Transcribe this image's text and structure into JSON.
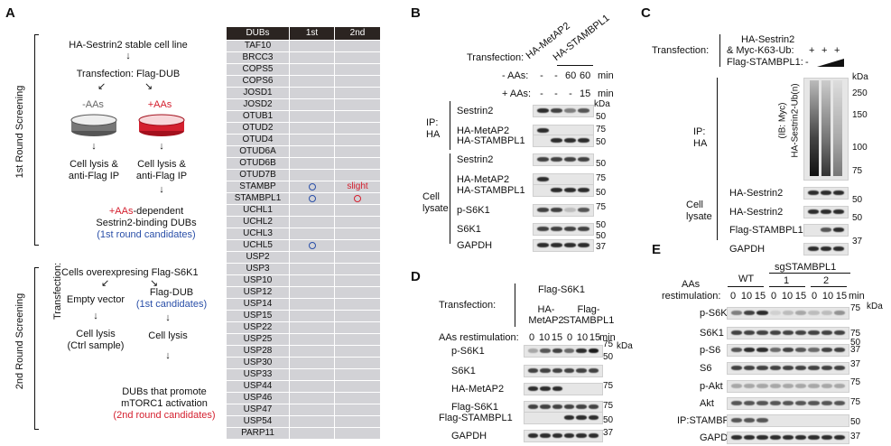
{
  "panels": {
    "a": "A",
    "b": "B",
    "c": "C",
    "d": "D",
    "e": "E"
  },
  "panelA": {
    "round1_label": "1st Round Screening",
    "round2_label": "2nd Round Screening",
    "stable_line": "HA-Sestrin2 stable cell line",
    "transfection_dub": "Transfection: Flag-DUB",
    "minus_aas": "-AAs",
    "plus_aas": "+AAs",
    "lysis_left": "Cell lysis &",
    "lysis_left2": "anti-Flag IP",
    "lysis_right": "Cell lysis &",
    "lysis_right2": "anti-Flag IP",
    "dep_red": "+AAs",
    "dep_rest": "-dependent",
    "binding": "Sestrin2-binding DUBs",
    "cands1": "(1st round candidates)",
    "cells_over": "Cells overexpresing Flag-S6K1",
    "transfection_side": "Transfection:",
    "empty_vector": "Empty vector",
    "flag_dub": "Flag-DUB",
    "cands_short": "(1st candidates)",
    "cell_lysis_ctrl": "Cell lysis",
    "ctrl_sample": "(Ctrl sample)",
    "cell_lysis": "Cell lysis",
    "promote1": "DUBs that promote",
    "promote2": "mTORC1 activation",
    "cands2": "(2nd round candidates)"
  },
  "dub_table": {
    "headers": [
      "DUBs",
      "1st",
      "2nd"
    ],
    "rows": [
      {
        "name": "TAF10",
        "first": "",
        "second": ""
      },
      {
        "name": "BRCC3",
        "first": "",
        "second": ""
      },
      {
        "name": "COPS5",
        "first": "",
        "second": ""
      },
      {
        "name": "COPS6",
        "first": "",
        "second": ""
      },
      {
        "name": "JOSD1",
        "first": "",
        "second": ""
      },
      {
        "name": "JOSD2",
        "first": "",
        "second": ""
      },
      {
        "name": "OTUB1",
        "first": "",
        "second": ""
      },
      {
        "name": "OTUD2",
        "first": "",
        "second": ""
      },
      {
        "name": "OTUD4",
        "first": "",
        "second": ""
      },
      {
        "name": "OTUD6A",
        "first": "",
        "second": ""
      },
      {
        "name": "OTUD6B",
        "first": "",
        "second": ""
      },
      {
        "name": "OTUD7B",
        "first": "",
        "second": ""
      },
      {
        "name": "STAMBP",
        "first": "o",
        "second": "slight"
      },
      {
        "name": "STAMBPL1",
        "first": "o",
        "second": "o"
      },
      {
        "name": "UCHL1",
        "first": "",
        "second": ""
      },
      {
        "name": "UCHL2",
        "first": "",
        "second": ""
      },
      {
        "name": "UCHL3",
        "first": "",
        "second": ""
      },
      {
        "name": "UCHL5",
        "first": "o",
        "second": ""
      },
      {
        "name": "USP2",
        "first": "",
        "second": ""
      },
      {
        "name": "USP3",
        "first": "",
        "second": ""
      },
      {
        "name": "USP10",
        "first": "",
        "second": ""
      },
      {
        "name": "USP12",
        "first": "",
        "second": ""
      },
      {
        "name": "USP14",
        "first": "",
        "second": ""
      },
      {
        "name": "USP15",
        "first": "",
        "second": ""
      },
      {
        "name": "USP22",
        "first": "",
        "second": ""
      },
      {
        "name": "USP25",
        "first": "",
        "second": ""
      },
      {
        "name": "USP28",
        "first": "",
        "second": ""
      },
      {
        "name": "USP30",
        "first": "",
        "second": ""
      },
      {
        "name": "USP33",
        "first": "",
        "second": ""
      },
      {
        "name": "USP44",
        "first": "",
        "second": ""
      },
      {
        "name": "USP46",
        "first": "",
        "second": ""
      },
      {
        "name": "USP47",
        "first": "",
        "second": ""
      },
      {
        "name": "USP54",
        "first": "",
        "second": ""
      },
      {
        "name": "PARP11",
        "first": "",
        "second": ""
      }
    ]
  },
  "panelB": {
    "transfection": "Transfection:",
    "col1": "HA-MetAP2",
    "col2": "HA-STAMBPL1",
    "minus_aas_label": "- AAs:",
    "minus_aas_vals": [
      "-",
      "-",
      "60",
      "60"
    ],
    "plus_aas_label": "+ AAs:",
    "plus_aas_vals": [
      "-",
      "-",
      "-",
      "15"
    ],
    "unit": "min",
    "kda": "kDa",
    "ip_label": "IP:",
    "ip_label2": "HA",
    "cell_label": "Cell",
    "cell_label2": "lysate",
    "rows": [
      "Sestrin2",
      "HA-MetAP2",
      "HA-STAMBPL1",
      "Sestrin2",
      "HA-MetAP2",
      "HA-STAMBPL1",
      "p-S6K1",
      "S6K1",
      "GAPDH"
    ],
    "mw": [
      "50",
      "75",
      "50",
      "50",
      "75",
      "50",
      "75",
      "50",
      "50",
      "37"
    ]
  },
  "panelC": {
    "transfection": "Transfection:",
    "line1": "HA-Sestrin2",
    "line2": "& Myc-K63-Ub:",
    "line2_vals": [
      "+",
      "+",
      "+"
    ],
    "line3": "Flag-STAMBPL1:",
    "line3_val": "-",
    "kda": "kDa",
    "ib_label": "(IB: Myc)",
    "ub_label": "HA-Sestrin2-Ub(n)",
    "ip_label": "IP:",
    "ip_label2": "HA",
    "cell_label": "Cell",
    "cell_label2": "lysate",
    "rows": [
      "HA-Sestrin2",
      "HA-Sestrin2",
      "Flag-STAMBPL1",
      "GAPDH"
    ],
    "mw": [
      "250",
      "150",
      "100",
      "75",
      "50",
      "50",
      "37"
    ]
  },
  "panelD": {
    "top": "Flag-S6K1",
    "transfection": "Transfection:",
    "g1a": "HA-",
    "g1b": "MetAP2",
    "g2a": "Flag-",
    "g2b": "STAMBPL1",
    "aas_label": "AAs restimulation:",
    "aas_vals": [
      "0",
      "10",
      "15",
      "0",
      "10",
      "15"
    ],
    "unit": "min",
    "kda": "kDa",
    "rows": [
      "p-S6K1",
      "S6K1",
      "HA-MetAP2",
      "Flag-S6K1",
      "Flag-STAMBPL1",
      "GAPDH"
    ],
    "mw": [
      "75",
      "50",
      "75",
      "75",
      "50",
      "37"
    ]
  },
  "panelE": {
    "sg": "sgSTAMBPL1",
    "wt": "WT",
    "g1": "1",
    "g2": "2",
    "aas_label1": "AAs",
    "aas_label2": "restimulation:",
    "aas_vals": [
      "0",
      "10",
      "15",
      "0",
      "10",
      "15",
      "0",
      "10",
      "15"
    ],
    "unit": "min",
    "kda": "kDa",
    "rows": [
      "p-S6K1",
      "S6K1",
      "p-S6",
      "S6",
      "p-Akt",
      "Akt",
      "IP:STAMBPL1",
      "GAPDH"
    ],
    "mw": [
      "75",
      "75",
      "50",
      "37",
      "37",
      "75",
      "75",
      "50",
      "37"
    ]
  }
}
